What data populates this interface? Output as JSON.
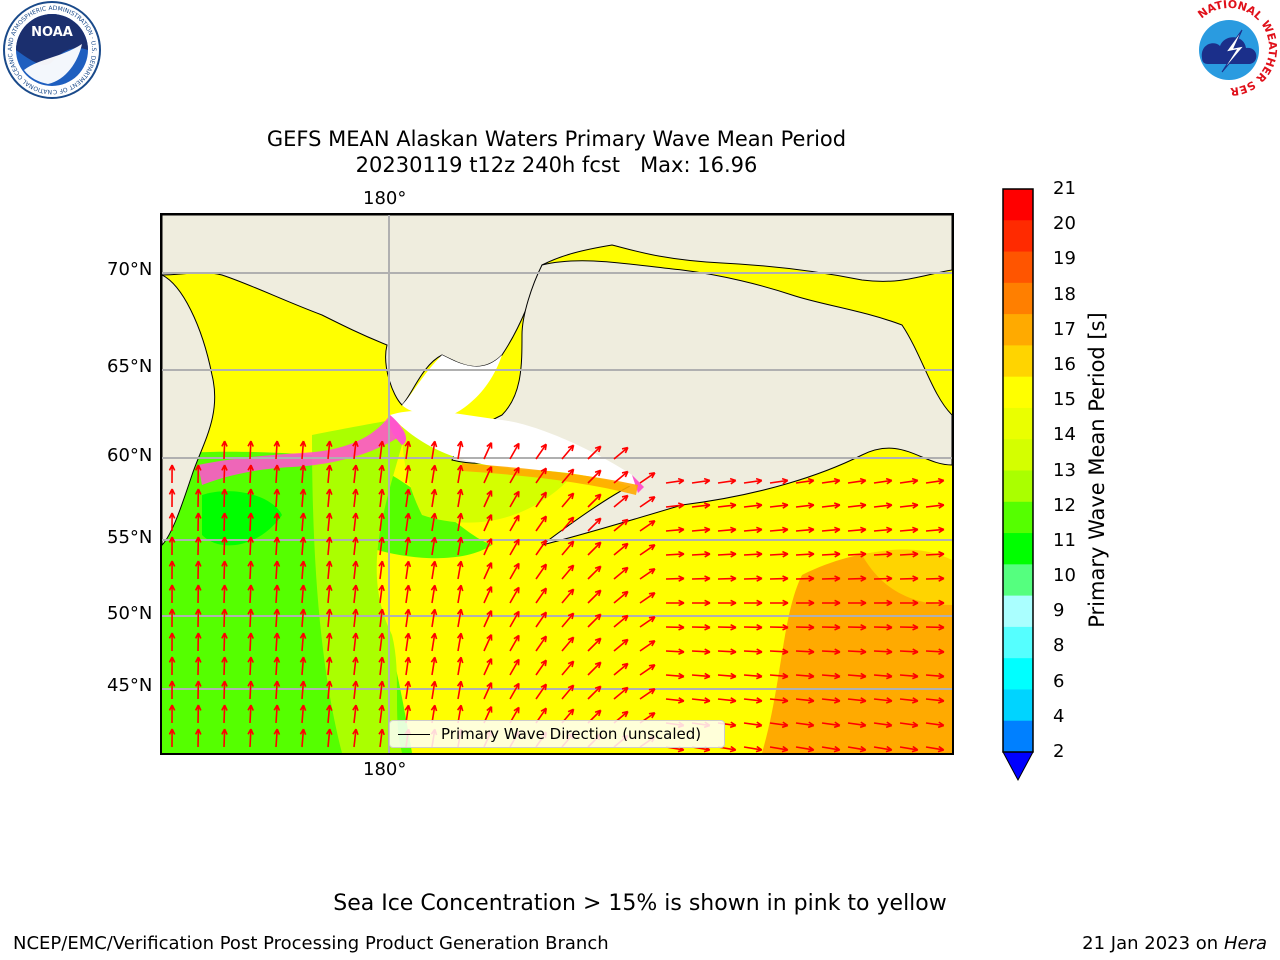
{
  "title": {
    "line1": "GEFS MEAN Alaskan Waters Primary Wave Mean Period",
    "line2": "20230119 t12z 240h fcst   Max: 16.96"
  },
  "map": {
    "top_lon_label": "180°",
    "bottom_lon_label": "180°",
    "lat_labels": [
      "70°N",
      "65°N",
      "60°N",
      "55°N",
      "50°N",
      "45°N"
    ],
    "legend_text": "Primary Wave Direction (unscaled)",
    "land_color": "#efedde",
    "arrow_color": "#ff0000"
  },
  "colorbar": {
    "label": "Primary Wave Mean Period [s]",
    "ticks": [
      "21",
      "20",
      "19",
      "18",
      "17",
      "16",
      "15",
      "14",
      "13",
      "12",
      "11",
      "10",
      "9",
      "8",
      "6",
      "4",
      "2"
    ],
    "colors": [
      "#ff0000",
      "#ff2a00",
      "#ff5500",
      "#ff7f00",
      "#ffaa00",
      "#ffd400",
      "#ffff00",
      "#eaff00",
      "#d4ff00",
      "#aaff00",
      "#55ff00",
      "#00ff00",
      "#55ff7f",
      "#aaffff",
      "#55ffff",
      "#00ffff",
      "#00d4ff",
      "#0080ff"
    ],
    "extend_color": "#0000ff"
  },
  "notes": {
    "ice": "Sea Ice Concentration > 15% is shown in pink to yellow",
    "footer_left": "NCEP/EMC/Verification Post Processing Product Generation Branch",
    "footer_date": "21 Jan 2023 on ",
    "footer_machine": "Hera"
  },
  "logos": {
    "noaa_text": "NOAA",
    "noaa_ring_text": "NATIONAL OCEANIC AND ATMOSPHERIC ADMINISTRATION · U.S. DEPARTMENT OF COMMERCE",
    "nws_ring_text": "NATIONAL WEATHER SERVICE"
  }
}
